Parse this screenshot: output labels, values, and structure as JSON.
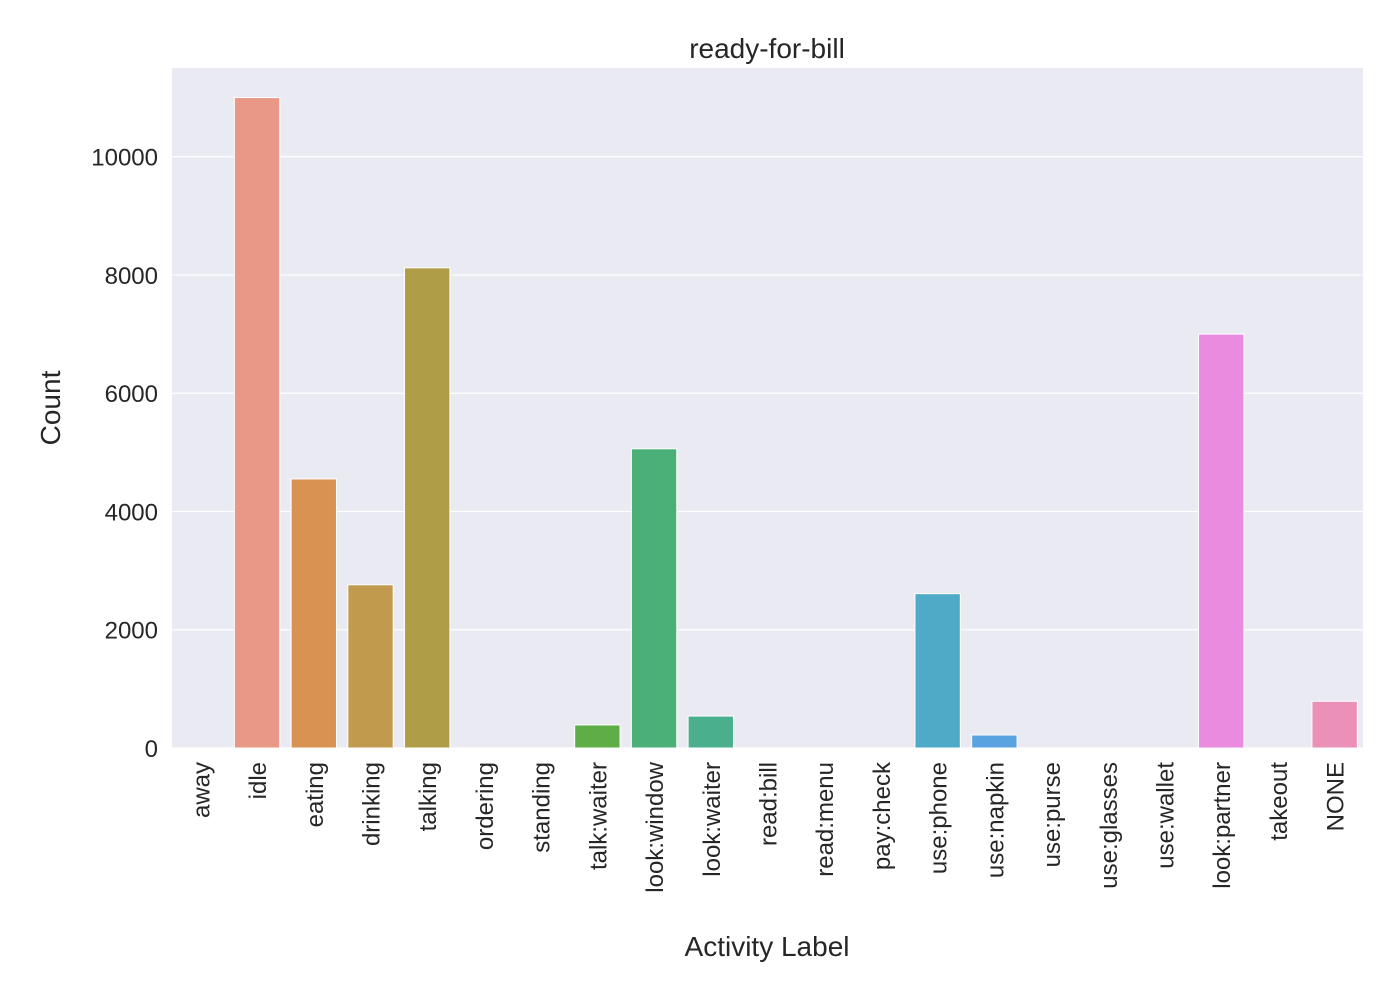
{
  "chart_data": {
    "type": "bar",
    "title": "ready-for-bill",
    "xlabel": "Activity Label",
    "ylabel": "Count",
    "ylim": [
      0,
      11500
    ],
    "yticks": [
      0,
      2000,
      4000,
      6000,
      8000,
      10000
    ],
    "grid": true,
    "categories": [
      "away",
      "idle",
      "eating",
      "drinking",
      "talking",
      "ordering",
      "standing",
      "talk:waiter",
      "look:window",
      "look:waiter",
      "read:bill",
      "read:menu",
      "pay:check",
      "use:phone",
      "use:napkin",
      "use:purse",
      "use:glasses",
      "use:wallet",
      "look:partner",
      "takeout",
      "NONE"
    ],
    "values": [
      0,
      11000,
      4550,
      2760,
      8120,
      0,
      0,
      390,
      5060,
      540,
      0,
      0,
      0,
      2610,
      220,
      0,
      0,
      0,
      7000,
      0,
      790
    ],
    "colors": [
      "#ea9581",
      "#e99786",
      "#d99252",
      "#c29a4e",
      "#af9d47",
      "#9ea044",
      "#7faa46",
      "#5eae48",
      "#4ab077",
      "#4aaf8d",
      "#4aae9f",
      "#4bacad",
      "#4eacbe",
      "#4faac8",
      "#59a4e0",
      "#8d9ce9",
      "#b28fe8",
      "#d387e9",
      "#ea8bdf",
      "#eb8dca",
      "#eb90b7"
    ]
  }
}
